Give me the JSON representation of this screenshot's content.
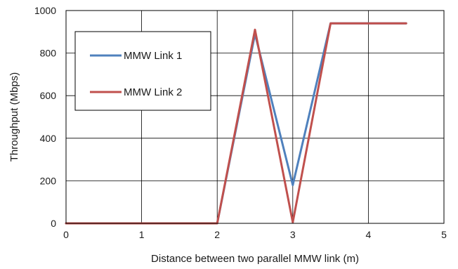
{
  "chart_data": {
    "type": "line",
    "title": "",
    "xlabel": "Distance between two parallel MMW link (m)",
    "ylabel": "Throughput (Mbps)",
    "xlim": [
      0,
      5
    ],
    "ylim": [
      0,
      1000
    ],
    "x_ticks": [
      "0",
      "1",
      "2",
      "3",
      "4",
      "5"
    ],
    "y_ticks": [
      "0",
      "200",
      "400",
      "600",
      "800",
      "1000"
    ],
    "grid": true,
    "legend_position": "upper-left",
    "series": [
      {
        "name": "MMW Link 1",
        "color": "#4f81bd",
        "x": [
          0,
          2,
          2.5,
          3,
          3.5,
          4.5
        ],
        "y": [
          0,
          0,
          890,
          180,
          940,
          940
        ]
      },
      {
        "name": "MMW Link 2",
        "color": "#c0504d",
        "x": [
          0,
          2,
          2.5,
          3,
          3.5,
          4.5
        ],
        "y": [
          0,
          0,
          910,
          5,
          940,
          940
        ]
      }
    ]
  }
}
